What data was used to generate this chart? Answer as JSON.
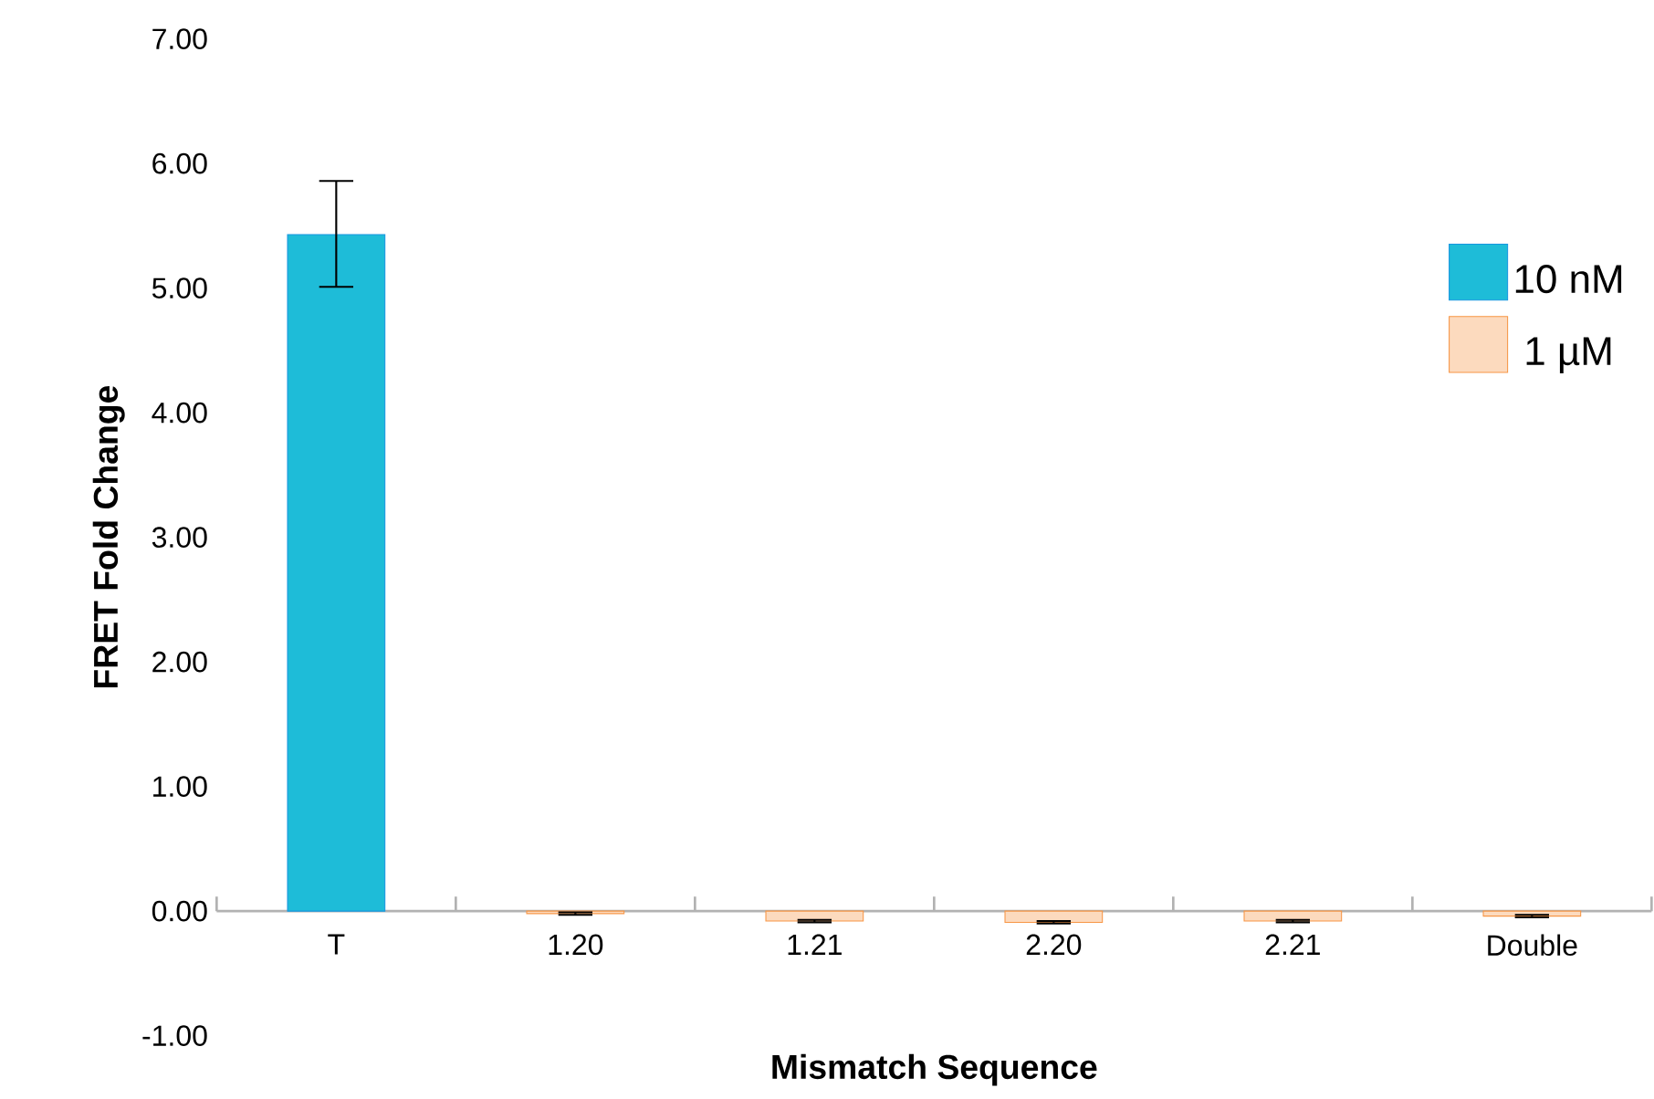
{
  "chart_data": {
    "type": "bar",
    "xlabel": "Mismatch Sequence",
    "ylabel": "FRET Fold Change",
    "categories": [
      "T",
      "1.20",
      "1.21",
      "2.20",
      "2.21",
      "Double"
    ],
    "series": [
      {
        "name": "10 nM",
        "color": "#1ebcd8",
        "values": [
          5.43,
          null,
          null,
          null,
          null,
          null
        ],
        "errors": [
          [
            5.01,
            5.86
          ],
          null,
          null,
          null,
          null,
          null
        ]
      },
      {
        "name": "1 µM",
        "color": "#f79646",
        "values": [
          null,
          -0.02,
          -0.08,
          -0.09,
          -0.08,
          -0.04
        ],
        "errors": [
          null,
          0.01,
          0.01,
          0.01,
          0.01,
          0.01
        ]
      }
    ],
    "ylim": [
      -1,
      7
    ],
    "yticks": [
      {
        "value": -1,
        "label": "-1.00"
      },
      {
        "value": 0,
        "label": "0.00"
      },
      {
        "value": 1,
        "label": "1.00"
      },
      {
        "value": 2,
        "label": "2.00"
      },
      {
        "value": 3,
        "label": "3.00"
      },
      {
        "value": 4,
        "label": "4.00"
      },
      {
        "value": 5,
        "label": "5.00"
      },
      {
        "value": 6,
        "label": "6.00"
      },
      {
        "value": 7,
        "label": "7.00"
      }
    ],
    "grid": false,
    "legend": "top right"
  }
}
